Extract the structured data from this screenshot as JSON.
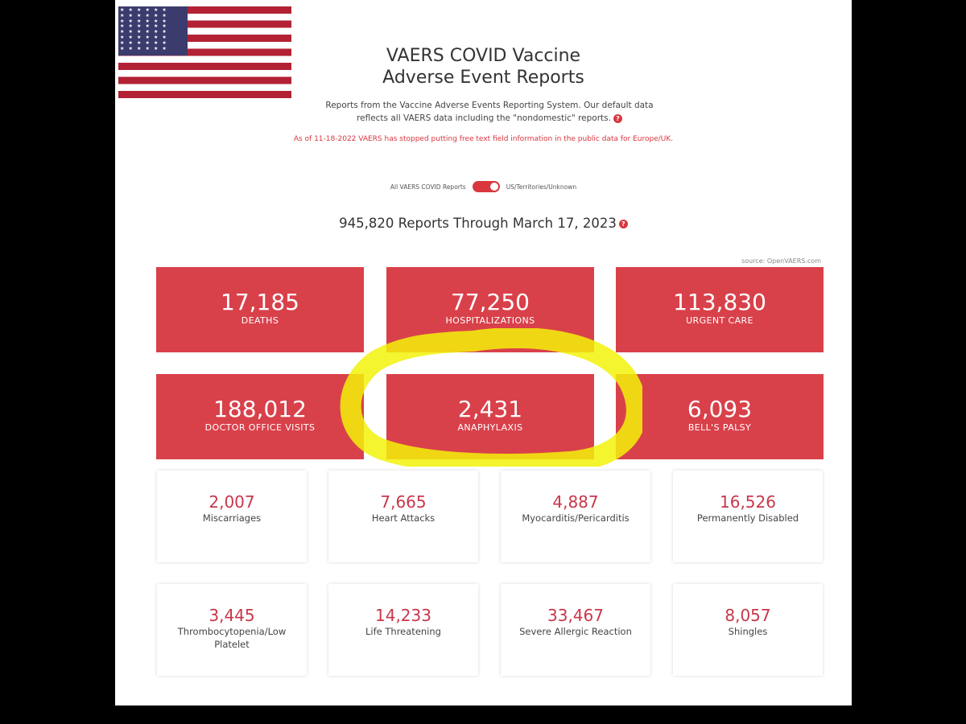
{
  "header": {
    "title_line1": "VAERS COVID Vaccine",
    "title_line2": "Adverse Event Reports",
    "subtitle": "Reports from the Vaccine Adverse Events Reporting System. Our default data reflects all VAERS data including the \"nondomestic\" reports.",
    "info_icon_glyph": "?",
    "notice": "As of 11-18-2022 VAERS has stopped putting free text field information in the public data for Europe/UK."
  },
  "toggle": {
    "left_label": "All VAERS COVID Reports",
    "right_label": "US/Territories/Unknown",
    "state": "on"
  },
  "reports_line": "945,820 Reports Through March 17, 2023",
  "source": "source: OpenVAERS.com",
  "big_stats": [
    {
      "value": "17,185",
      "label": "DEATHS"
    },
    {
      "value": "77,250",
      "label": "HOSPITALIZATIONS"
    },
    {
      "value": "113,830",
      "label": "URGENT CARE"
    },
    {
      "value": "188,012",
      "label": "DOCTOR OFFICE VISITS"
    },
    {
      "value": "2,431",
      "label": "ANAPHYLAXIS"
    },
    {
      "value": "6,093",
      "label": "BELL'S PALSY"
    }
  ],
  "small_stats": [
    {
      "value": "2,007",
      "label": "Miscarriages"
    },
    {
      "value": "7,665",
      "label": "Heart Attacks"
    },
    {
      "value": "4,887",
      "label": "Myocarditis/Pericarditis"
    },
    {
      "value": "16,526",
      "label": "Permanently Disabled"
    },
    {
      "value": "3,445",
      "label": "Thrombocytopenia/Low Platelet"
    },
    {
      "value": "14,233",
      "label": "Life Threatening"
    },
    {
      "value": "33,467",
      "label": "Severe Allergic Reaction"
    },
    {
      "value": "8,057",
      "label": "Shingles"
    }
  ],
  "flag": {
    "stars_glyph": "★ ★ ★ ★ ★ ★"
  },
  "colors": {
    "accent": "#d9414a",
    "number_red": "#c8374a",
    "highlight": "#f2f20a"
  }
}
